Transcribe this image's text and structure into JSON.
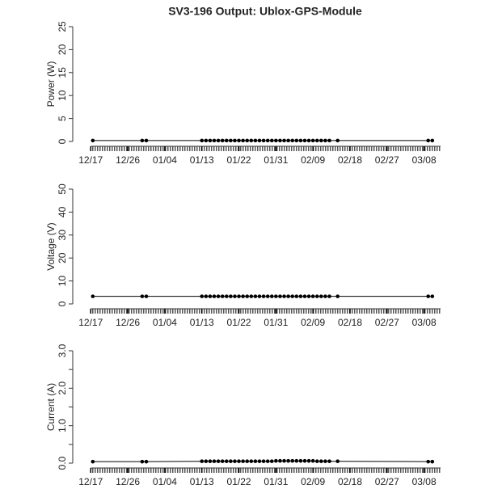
{
  "chart_data": [
    {
      "type": "line",
      "title": "SV3-196 Output: Ublox-GPS-Module",
      "ylabel": "Power (W)",
      "color": "#000000",
      "x": [
        0.5,
        12.5,
        13.5,
        27,
        28,
        29,
        30,
        31,
        32,
        33,
        34,
        35,
        36,
        37,
        38,
        39,
        40,
        41,
        42,
        43,
        44,
        45,
        46,
        47,
        48,
        49,
        50,
        51,
        52,
        53,
        54,
        55,
        56,
        57,
        58,
        60,
        82,
        83
      ],
      "values": [
        0.2,
        0.2,
        0.2,
        0.2,
        0.2,
        0.2,
        0.2,
        0.2,
        0.2,
        0.2,
        0.2,
        0.2,
        0.2,
        0.2,
        0.2,
        0.2,
        0.2,
        0.2,
        0.2,
        0.2,
        0.2,
        0.2,
        0.2,
        0.2,
        0.2,
        0.2,
        0.2,
        0.2,
        0.2,
        0.2,
        0.2,
        0.2,
        0.2,
        0.2,
        0.2,
        0.2,
        0.2,
        0.2
      ],
      "xlim": [
        -3,
        85
      ],
      "ylim": [
        0,
        25
      ],
      "yticks": [
        0,
        5,
        10,
        15,
        20,
        25
      ],
      "xticks": [
        {
          "value": 0,
          "label": "12/17"
        },
        {
          "value": 9,
          "label": "12/26"
        },
        {
          "value": 18,
          "label": "01/04"
        },
        {
          "value": 27,
          "label": "01/13"
        },
        {
          "value": 36,
          "label": "01/22"
        },
        {
          "value": 45,
          "label": "01/31"
        },
        {
          "value": 54,
          "label": "02/09"
        },
        {
          "value": 63,
          "label": "02/18"
        },
        {
          "value": 72,
          "label": "02/27"
        },
        {
          "value": 81,
          "label": "03/08"
        }
      ]
    },
    {
      "type": "line",
      "ylabel": "Voltage (V)",
      "color": "#000000",
      "x": [
        0.5,
        12.5,
        13.5,
        27,
        28,
        29,
        30,
        31,
        32,
        33,
        34,
        35,
        36,
        37,
        38,
        39,
        40,
        41,
        42,
        43,
        44,
        45,
        46,
        47,
        48,
        49,
        50,
        51,
        52,
        53,
        54,
        55,
        56,
        57,
        58,
        60,
        82,
        83
      ],
      "values": [
        3.3,
        3.3,
        3.3,
        3.3,
        3.3,
        3.3,
        3.3,
        3.3,
        3.3,
        3.3,
        3.3,
        3.3,
        3.3,
        3.3,
        3.3,
        3.3,
        3.3,
        3.3,
        3.3,
        3.3,
        3.3,
        3.3,
        3.3,
        3.3,
        3.3,
        3.3,
        3.3,
        3.3,
        3.3,
        3.3,
        3.3,
        3.3,
        3.3,
        3.3,
        3.3,
        3.3,
        3.3,
        3.3
      ],
      "xlim": [
        -3,
        85
      ],
      "ylim": [
        0,
        50
      ],
      "yticks": [
        0,
        10,
        20,
        30,
        40,
        50
      ],
      "xticks": [
        {
          "value": 0,
          "label": "12/17"
        },
        {
          "value": 9,
          "label": "12/26"
        },
        {
          "value": 18,
          "label": "01/04"
        },
        {
          "value": 27,
          "label": "01/13"
        },
        {
          "value": 36,
          "label": "01/22"
        },
        {
          "value": 45,
          "label": "01/31"
        },
        {
          "value": 54,
          "label": "02/09"
        },
        {
          "value": 63,
          "label": "02/18"
        },
        {
          "value": 72,
          "label": "02/27"
        },
        {
          "value": 81,
          "label": "03/08"
        }
      ]
    },
    {
      "type": "line",
      "ylabel": "Current (A)",
      "color": "#000000",
      "x": [
        0.5,
        12.5,
        13.5,
        27,
        28,
        29,
        30,
        31,
        32,
        33,
        34,
        35,
        36,
        37,
        38,
        39,
        40,
        41,
        42,
        43,
        44,
        45,
        46,
        47,
        48,
        49,
        50,
        51,
        52,
        53,
        54,
        55,
        56,
        57,
        58,
        60,
        82,
        83
      ],
      "values": [
        0.04,
        0.04,
        0.04,
        0.05,
        0.05,
        0.05,
        0.05,
        0.05,
        0.05,
        0.05,
        0.05,
        0.05,
        0.05,
        0.05,
        0.05,
        0.05,
        0.05,
        0.05,
        0.05,
        0.05,
        0.05,
        0.06,
        0.06,
        0.06,
        0.06,
        0.06,
        0.06,
        0.06,
        0.06,
        0.06,
        0.06,
        0.05,
        0.05,
        0.05,
        0.05,
        0.05,
        0.04,
        0.04
      ],
      "xlim": [
        -3,
        85
      ],
      "ylim": [
        0,
        3
      ],
      "yticks": [
        {
          "value": 0,
          "label": "0.0"
        },
        {
          "value": 1,
          "label": "1.0"
        },
        {
          "value": 2,
          "label": "2.0"
        },
        {
          "value": 3,
          "label": "3.0"
        }
      ],
      "yminorticks": [
        0.5,
        1.5,
        2.5
      ],
      "xticks": [
        {
          "value": 0,
          "label": "12/17"
        },
        {
          "value": 9,
          "label": "12/26"
        },
        {
          "value": 18,
          "label": "01/04"
        },
        {
          "value": 27,
          "label": "01/13"
        },
        {
          "value": 36,
          "label": "01/22"
        },
        {
          "value": 45,
          "label": "01/31"
        },
        {
          "value": 54,
          "label": "02/09"
        },
        {
          "value": 63,
          "label": "02/18"
        },
        {
          "value": 72,
          "label": "02/27"
        },
        {
          "value": 81,
          "label": "03/08"
        }
      ]
    }
  ]
}
